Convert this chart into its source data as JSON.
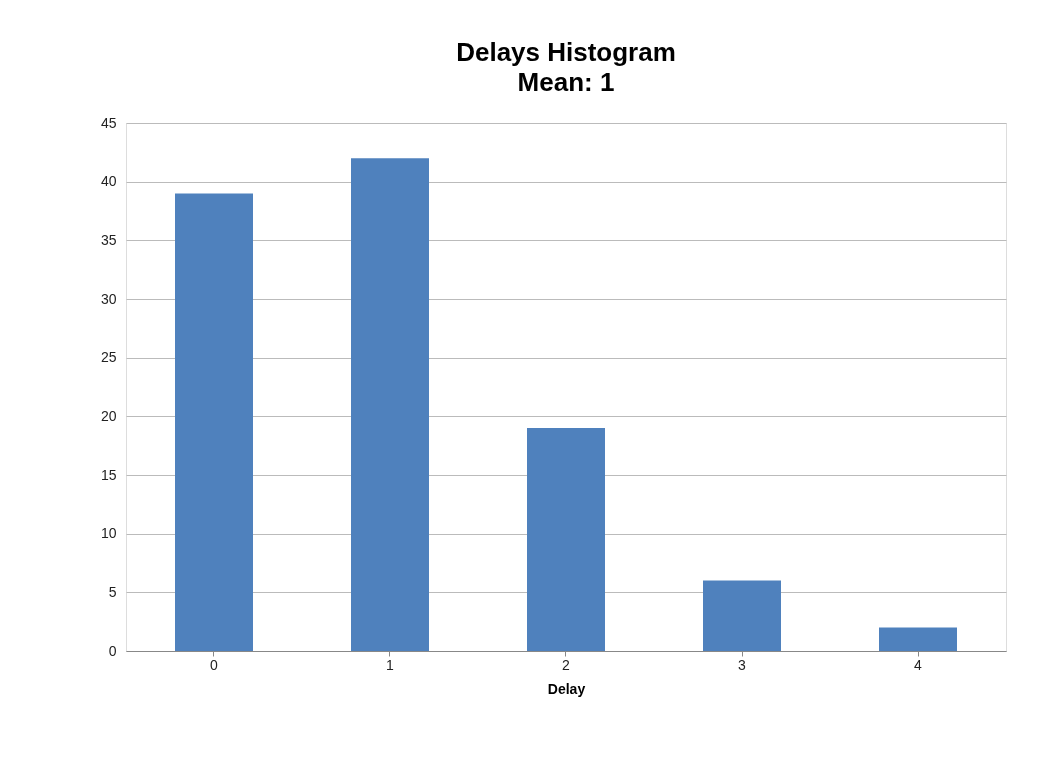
{
  "chart_data": {
    "type": "bar",
    "title": "Delays Histogram",
    "subtitle": "Mean: 1",
    "xlabel": "Delay",
    "categories": [
      "0",
      "1",
      "2",
      "3",
      "4"
    ],
    "values": [
      39,
      42,
      19,
      6,
      2
    ],
    "color": "#4f81bd",
    "ylim": [
      0,
      45
    ],
    "yticks": [
      0,
      5,
      10,
      15,
      20,
      25,
      30,
      35,
      40,
      45
    ],
    "grid": "y"
  }
}
